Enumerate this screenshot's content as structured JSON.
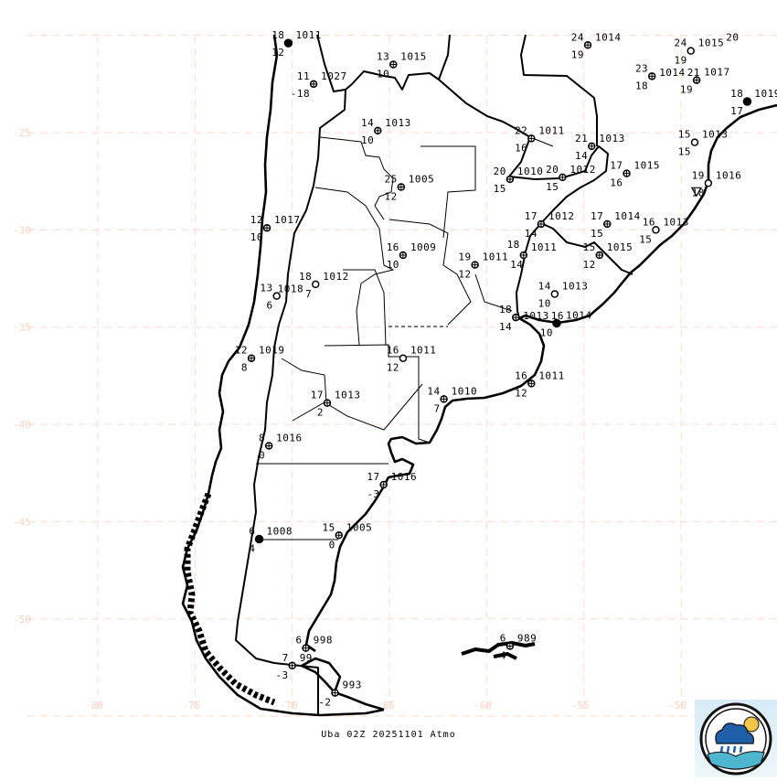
{
  "map": {
    "title": "Uba 02Z 20251101 Atmo",
    "lat_labels": [
      -25,
      -30,
      -35,
      -40,
      -45,
      -50
    ],
    "lon_labels": [
      -80,
      -75,
      -70,
      -65,
      -60,
      -55,
      -50
    ],
    "grid_color": "#ffd9cc",
    "logo": "weather-service-logo"
  },
  "stations": [
    {
      "lon": -70.2,
      "lat": -20.4,
      "t": "18",
      "p": "1011",
      "td": "12",
      "symbol": "filled"
    },
    {
      "lon": -68.9,
      "lat": -22.5,
      "t": "11",
      "p": "1027",
      "td": "-18",
      "symbol": "crossed"
    },
    {
      "lon": -64.8,
      "lat": -21.5,
      "t": "13",
      "p": "1015",
      "td": "10",
      "symbol": "crossed"
    },
    {
      "lon": -65.6,
      "lat": -24.9,
      "t": "14",
      "p": "1013",
      "td": "10",
      "symbol": "crossed"
    },
    {
      "lon": -64.4,
      "lat": -27.8,
      "t": "25",
      "p": "1005",
      "td": "12",
      "symbol": "crossed"
    },
    {
      "lon": -54.8,
      "lat": -20.5,
      "t": "24",
      "p": "1014",
      "td": "19",
      "symbol": "crossed"
    },
    {
      "lon": -49.5,
      "lat": -20.8,
      "t": "24",
      "p": "1015",
      "td": "19",
      "symbol": "open"
    },
    {
      "lon": -47.1,
      "lat": -20.5,
      "t": "20",
      "p": "",
      "td": "",
      "symbol": "none"
    },
    {
      "lon": -51.5,
      "lat": -22.1,
      "t": "23",
      "p": "1014",
      "td": "18",
      "symbol": "crossed"
    },
    {
      "lon": -49.2,
      "lat": -22.3,
      "t": "21",
      "p": "1017",
      "td": "19",
      "symbol": "crossed"
    },
    {
      "lon": -46.6,
      "lat": -23.4,
      "t": "18",
      "p": "1019",
      "td": "17",
      "symbol": "filled"
    },
    {
      "lon": -57.7,
      "lat": -25.3,
      "t": "22",
      "p": "1011",
      "td": "16",
      "symbol": "crossed"
    },
    {
      "lon": -54.6,
      "lat": -25.7,
      "t": "21",
      "p": "1013",
      "td": "14",
      "symbol": "crossed"
    },
    {
      "lon": -58.8,
      "lat": -27.4,
      "t": "20",
      "p": "1010",
      "td": "15",
      "symbol": "crossed"
    },
    {
      "lon": -56.1,
      "lat": -27.3,
      "t": "20",
      "p": "1012",
      "td": "15",
      "symbol": "crossed"
    },
    {
      "lon": -52.8,
      "lat": -27.1,
      "t": "17",
      "p": "1015",
      "td": "16",
      "symbol": "crossed"
    },
    {
      "lon": -49.3,
      "lat": -25.5,
      "t": "15",
      "p": "1013",
      "td": "15",
      "symbol": "open"
    },
    {
      "lon": -48.6,
      "lat": -27.6,
      "t": "19",
      "p": "1016",
      "td": "18",
      "symbol": "shower"
    },
    {
      "lon": -71.3,
      "lat": -29.9,
      "t": "12",
      "p": "1017",
      "td": "10",
      "symbol": "crossed"
    },
    {
      "lon": -64.3,
      "lat": -31.3,
      "t": "16",
      "p": "1009",
      "td": "10",
      "symbol": "crossed"
    },
    {
      "lon": -60.6,
      "lat": -31.8,
      "t": "19",
      "p": "1011",
      "td": "12",
      "symbol": "crossed"
    },
    {
      "lon": -57.2,
      "lat": -29.7,
      "t": "17",
      "p": "1012",
      "td": "14",
      "symbol": "crossed"
    },
    {
      "lon": -58.1,
      "lat": -31.3,
      "t": "18",
      "p": "1011",
      "td": "14",
      "symbol": "crossed"
    },
    {
      "lon": -53.8,
      "lat": -29.7,
      "t": "17",
      "p": "1014",
      "td": "15",
      "symbol": "crossed"
    },
    {
      "lon": -51.3,
      "lat": -30.0,
      "t": "16",
      "p": "1013",
      "td": "15",
      "symbol": "open"
    },
    {
      "lon": -54.2,
      "lat": -31.3,
      "t": "15",
      "p": "1015",
      "td": "12",
      "symbol": "crossed"
    },
    {
      "lon": -68.8,
      "lat": -32.8,
      "t": "18",
      "p": "1012",
      "td": "7",
      "symbol": "open"
    },
    {
      "lon": -70.8,
      "lat": -33.4,
      "t": "13",
      "p": "1018",
      "td": "6",
      "symbol": "open"
    },
    {
      "lon": -56.5,
      "lat": -33.3,
      "t": "14",
      "p": "1013",
      "td": "10",
      "symbol": "open"
    },
    {
      "lon": -58.5,
      "lat": -34.5,
      "t": "18",
      "p": "1013",
      "td": "14",
      "symbol": "crossed"
    },
    {
      "lon": -56.4,
      "lat": -34.8,
      "t": "16",
      "p": "1014",
      "td": "10",
      "symbol": "filled"
    },
    {
      "lon": -72.1,
      "lat": -36.6,
      "t": "12",
      "p": "1019",
      "td": "8",
      "symbol": "crossed"
    },
    {
      "lon": -64.3,
      "lat": -36.6,
      "t": "16",
      "p": "1011",
      "td": "12",
      "symbol": "open"
    },
    {
      "lon": -57.7,
      "lat": -37.9,
      "t": "16",
      "p": "1011",
      "td": "12",
      "symbol": "crossed"
    },
    {
      "lon": -68.2,
      "lat": -38.9,
      "t": "17",
      "p": "1013",
      "td": "2",
      "symbol": "crossed"
    },
    {
      "lon": -62.2,
      "lat": -38.7,
      "t": "14",
      "p": "1010",
      "td": "7",
      "symbol": "crossed"
    },
    {
      "lon": -71.2,
      "lat": -41.1,
      "t": "8",
      "p": "1016",
      "td": "0",
      "symbol": "crossed"
    },
    {
      "lon": -65.3,
      "lat": -43.1,
      "t": "17",
      "p": "1016",
      "td": "-3",
      "symbol": "crossed"
    },
    {
      "lon": -71.7,
      "lat": -45.9,
      "t": "6",
      "p": "1008",
      "td": "4",
      "symbol": "filled"
    },
    {
      "lon": -67.6,
      "lat": -45.7,
      "t": "15",
      "p": "1005",
      "td": "0",
      "symbol": "crossed"
    },
    {
      "lon": -69.3,
      "lat": -51.5,
      "t": "6",
      "p": "998",
      "td": "",
      "symbol": "crossed"
    },
    {
      "lon": -70.0,
      "lat": -52.4,
      "t": "7",
      "p": "99",
      "td": "-3",
      "symbol": "crossed"
    },
    {
      "lon": -67.8,
      "lat": -53.8,
      "t": "",
      "p": "993",
      "td": "-2",
      "symbol": "crossed"
    },
    {
      "lon": -58.8,
      "lat": -51.4,
      "t": "6",
      "p": "989",
      "td": "4",
      "symbol": "crossed"
    }
  ]
}
